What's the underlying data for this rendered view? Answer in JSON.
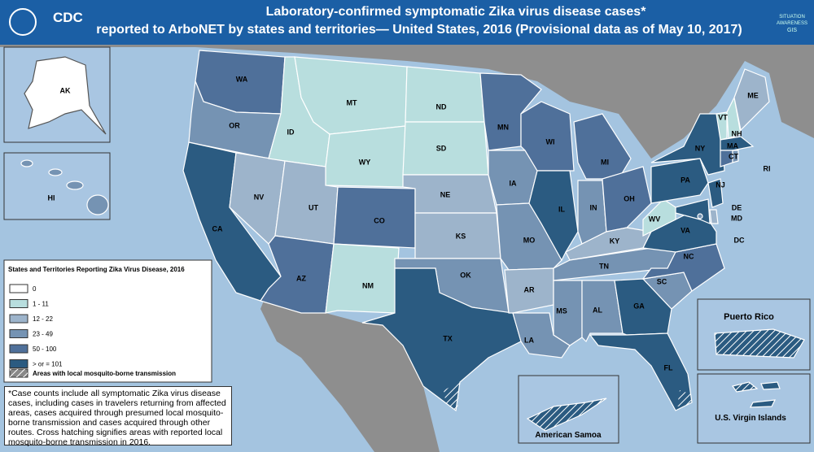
{
  "header": {
    "title_lines": [
      "Laboratory-confirmed symptomatic Zika virus disease cases*",
      "reported to ArboNET by states and territories— United States, 2016 (Provisional data as of May 10, 2017)"
    ],
    "logo": "CDC",
    "badge": [
      "SITUATION",
      "AWARENESS",
      "GIS"
    ]
  },
  "legend": {
    "title": "States and Territories Reporting Zika Virus Disease, 2016",
    "items": [
      {
        "label": "0",
        "color": "#ffffff"
      },
      {
        "label": "1 - 11",
        "color": "#b8dede"
      },
      {
        "label": "12 - 22",
        "color": "#9db4cb"
      },
      {
        "label": "23 - 49",
        "color": "#7593b3"
      },
      {
        "label": "50 - 100",
        "color": "#4f709a"
      },
      {
        "label": "> or = 101",
        "color": "#2b5b81"
      }
    ],
    "hatch_label": "Areas with local mosquito-borne transmission"
  },
  "states": [
    {
      "label": "WA",
      "class": 4
    },
    {
      "label": "OR",
      "class": 3
    },
    {
      "label": "CA",
      "class": 5
    },
    {
      "label": "NV",
      "class": 2
    },
    {
      "label": "ID",
      "class": 1
    },
    {
      "label": "MT",
      "class": 1
    },
    {
      "label": "WY",
      "class": 1
    },
    {
      "label": "UT",
      "class": 2
    },
    {
      "label": "CO",
      "class": 4
    },
    {
      "label": "AZ",
      "class": 4
    },
    {
      "label": "NM",
      "class": 1
    },
    {
      "label": "ND",
      "class": 1
    },
    {
      "label": "SD",
      "class": 1
    },
    {
      "label": "NE",
      "class": 2
    },
    {
      "label": "KS",
      "class": 2
    },
    {
      "label": "OK",
      "class": 3
    },
    {
      "label": "TX",
      "class": 5,
      "local_transmission": true
    },
    {
      "label": "MN",
      "class": 4
    },
    {
      "label": "IA",
      "class": 3
    },
    {
      "label": "MO",
      "class": 3
    },
    {
      "label": "AR",
      "class": 2
    },
    {
      "label": "LA",
      "class": 3
    },
    {
      "label": "WI",
      "class": 4
    },
    {
      "label": "IL",
      "class": 5
    },
    {
      "label": "MI",
      "class": 4
    },
    {
      "label": "IN",
      "class": 3
    },
    {
      "label": "OH",
      "class": 4
    },
    {
      "label": "KY",
      "class": 2
    },
    {
      "label": "TN",
      "class": 3
    },
    {
      "label": "MS",
      "class": 3
    },
    {
      "label": "AL",
      "class": 3
    },
    {
      "label": "GA",
      "class": 5
    },
    {
      "label": "FL",
      "class": 5,
      "local_transmission": true
    },
    {
      "label": "SC",
      "class": 3
    },
    {
      "label": "NC",
      "class": 4
    },
    {
      "label": "VA",
      "class": 5
    },
    {
      "label": "WV",
      "class": 1
    },
    {
      "label": "PA",
      "class": 5
    },
    {
      "label": "NY",
      "class": 5
    },
    {
      "label": "NJ",
      "class": 5
    },
    {
      "label": "DE",
      "class": 2
    },
    {
      "label": "MD",
      "class": 5
    },
    {
      "label": "VT",
      "class": 1
    },
    {
      "label": "NH",
      "class": 1
    },
    {
      "label": "ME",
      "class": 2
    },
    {
      "label": "MA",
      "class": 5
    },
    {
      "label": "CT",
      "class": 4
    },
    {
      "label": "RI",
      "class": 3
    },
    {
      "label": "DC",
      "class": 3
    },
    {
      "label": "AK",
      "class": 0
    },
    {
      "label": "HI",
      "class": 3
    }
  ],
  "territories": [
    {
      "label": "Puerto Rico",
      "class": 5,
      "local_transmission": true
    },
    {
      "label": "American Samoa",
      "class": 5,
      "local_transmission": true
    },
    {
      "label": "U.S. Virgin Islands",
      "class": 5,
      "local_transmission": true
    }
  ],
  "footnote": "*Case counts include all symptomatic Zika virus disease cases, including cases in travelers returning from affected areas, cases acquired through presumed local mosquito-borne transmission and cases acquired through other routes. Cross hatching signifies areas with reported local mosquito-borne transmission in 2016."
}
